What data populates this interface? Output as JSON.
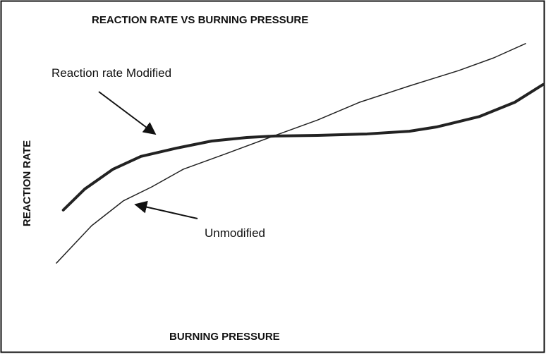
{
  "chart_data": {
    "type": "line",
    "title": "REACTION RATE VS BURNING PRESSURE",
    "x_label": "BURNING PRESSURE",
    "y_label": "REACTION RATE",
    "xlim": [
      0,
      100
    ],
    "ylim": [
      0,
      100
    ],
    "series": [
      {
        "name": "Reaction rate Modified",
        "color": "#222222",
        "x": [
          1.4,
          5.8,
          11.6,
          17.3,
          24.6,
          31.8,
          39.0,
          44.8,
          53.5,
          63.6,
          72.3,
          78.0,
          86.7,
          93.9,
          99.7
        ],
        "values": [
          38.6,
          45.7,
          52.4,
          56.7,
          59.5,
          61.9,
          63.1,
          63.6,
          63.8,
          64.3,
          65.2,
          66.7,
          70.2,
          75.0,
          81.0
        ]
      },
      {
        "name": "Unmodified",
        "color": "#222222",
        "x": [
          0,
          7.2,
          13.7,
          19.5,
          26.0,
          34.7,
          44.8,
          53.5,
          62.1,
          72.3,
          82.4,
          89.6,
          96.1
        ],
        "values": [
          20.7,
          33.3,
          41.7,
          46.4,
          52.4,
          57.6,
          63.8,
          69.0,
          75.0,
          80.5,
          85.7,
          90.0,
          94.8
        ]
      }
    ]
  }
}
